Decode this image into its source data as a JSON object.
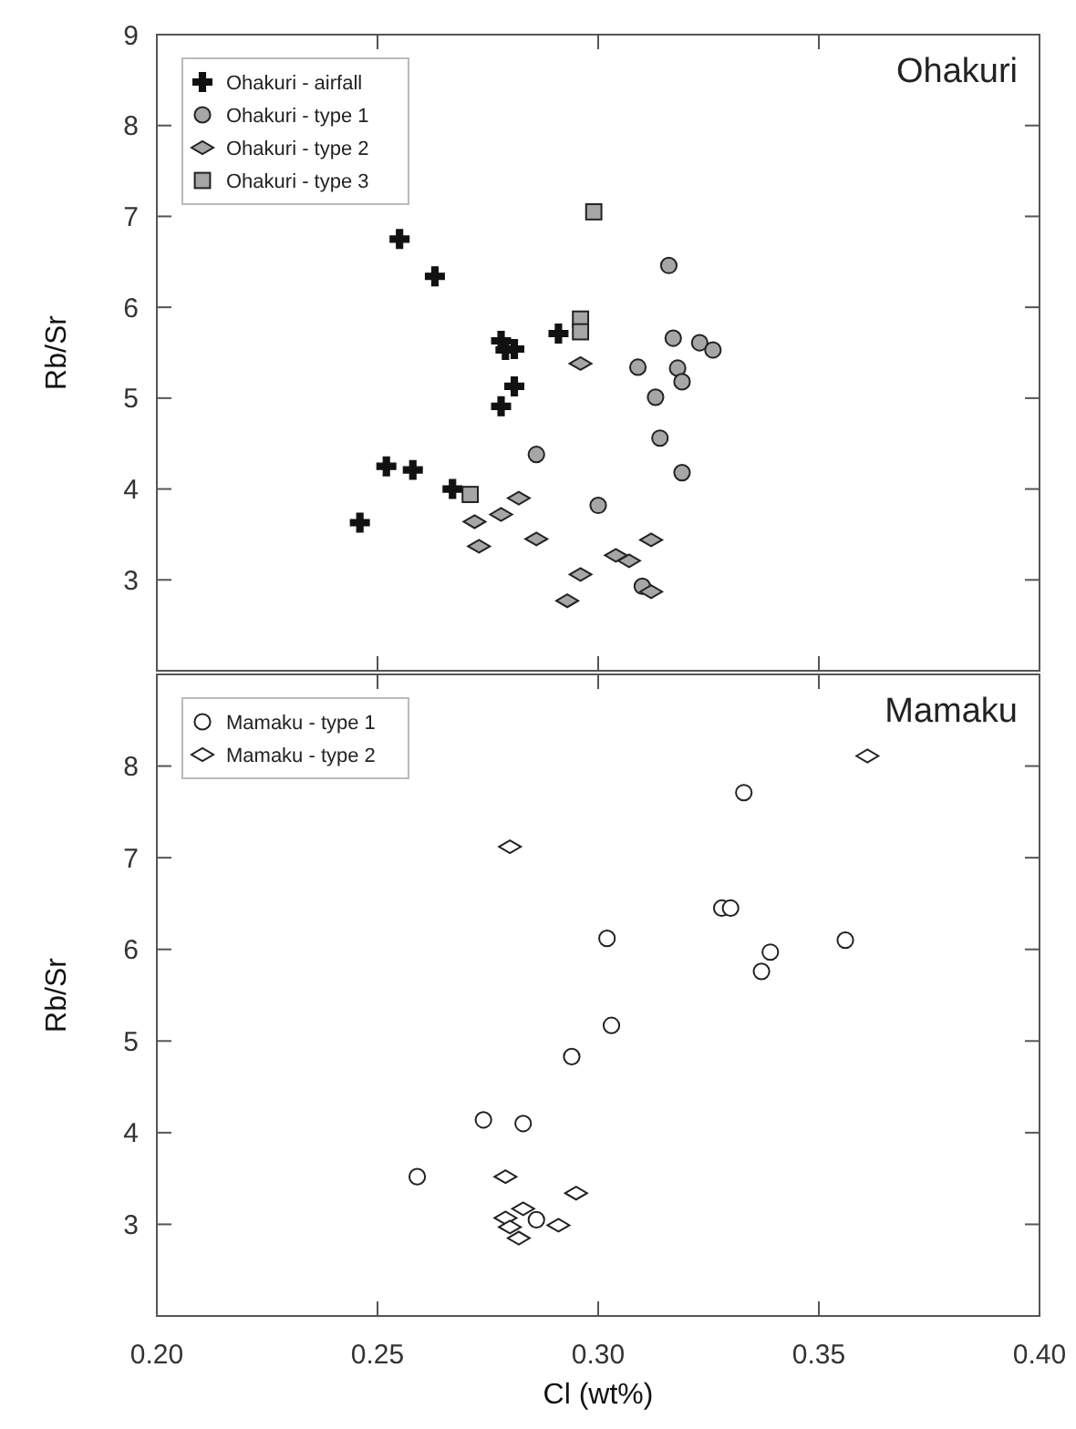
{
  "chart_data": [
    {
      "type": "scatter",
      "title": "Ohakuri",
      "ylabel": "Rb/Sr",
      "xlim": [
        0.2,
        0.4
      ],
      "ylim": [
        2,
        9
      ],
      "xticks": [
        {
          "value": 0.25,
          "label": null
        },
        {
          "value": 0.3,
          "label": null
        },
        {
          "value": 0.35,
          "label": null
        }
      ],
      "yticks": [
        3,
        4,
        5,
        6,
        7,
        8,
        9
      ],
      "tick_labels": "y",
      "legend": "top left",
      "grid": false,
      "series": [
        {
          "name": "Ohakuri - airfall",
          "color": "#111111",
          "marker": "cross",
          "x": [
            0.246,
            0.252,
            0.258,
            0.255,
            0.263,
            0.267,
            0.278,
            0.279,
            0.281,
            0.281,
            0.278,
            0.291
          ],
          "values": [
            3.63,
            4.25,
            4.21,
            6.75,
            6.34,
            4.0,
            5.63,
            5.53,
            5.54,
            5.13,
            4.91,
            5.71
          ]
        },
        {
          "name": "Ohakuri - type 1",
          "color": "#a6a6a6",
          "marker": "circle",
          "x": [
            0.316,
            0.317,
            0.323,
            0.326,
            0.309,
            0.318,
            0.319,
            0.313,
            0.314,
            0.319,
            0.286,
            0.3,
            0.31
          ],
          "values": [
            6.46,
            5.66,
            5.61,
            5.53,
            5.34,
            5.33,
            5.18,
            5.01,
            4.56,
            4.18,
            4.38,
            3.82,
            2.93
          ]
        },
        {
          "name": "Ohakuri - type 2",
          "color": "#a6a6a6",
          "marker": "diamond",
          "x": [
            0.296,
            0.282,
            0.278,
            0.272,
            0.273,
            0.286,
            0.312,
            0.304,
            0.307,
            0.296,
            0.293,
            0.312
          ],
          "values": [
            5.38,
            3.9,
            3.72,
            3.64,
            3.37,
            3.45,
            3.44,
            3.27,
            3.21,
            3.06,
            2.77,
            2.87
          ]
        },
        {
          "name": "Ohakuri - type 3",
          "color": "#a6a6a6",
          "marker": "square",
          "x": [
            0.299,
            0.296,
            0.296,
            0.271
          ],
          "values": [
            7.05,
            5.87,
            5.73,
            3.94
          ]
        }
      ]
    },
    {
      "type": "scatter",
      "title": "Mamaku",
      "xlabel": "Cl (wt%)",
      "ylabel": "Rb/Sr",
      "xlim": [
        0.2,
        0.4
      ],
      "ylim": [
        2,
        9
      ],
      "xticks": [
        {
          "value": 0.2,
          "label": "0.20"
        },
        0.25,
        {
          "value": 0.3,
          "label": "0.30"
        },
        0.35,
        {
          "value": 0.4,
          "label": "0.40"
        }
      ],
      "yticks": [
        3,
        4,
        5,
        6,
        7,
        8
      ],
      "legend": "top left",
      "grid": false,
      "series": [
        {
          "name": "Mamaku - type 1",
          "color": "#ffffff",
          "marker": "circle",
          "x": [
            0.333,
            0.328,
            0.33,
            0.302,
            0.356,
            0.339,
            0.337,
            0.303,
            0.294,
            0.274,
            0.283,
            0.259,
            0.286
          ],
          "values": [
            7.71,
            6.45,
            6.45,
            6.12,
            6.1,
            5.97,
            5.76,
            5.17,
            4.83,
            4.14,
            4.1,
            3.52,
            3.05
          ]
        },
        {
          "name": "Mamaku - type 2",
          "color": "#ffffff",
          "marker": "diamond",
          "x": [
            0.361,
            0.28,
            0.279,
            0.295,
            0.283,
            0.279,
            0.28,
            0.291,
            0.282
          ],
          "values": [
            8.11,
            7.12,
            3.52,
            3.34,
            3.17,
            3.07,
            2.97,
            2.99,
            2.85
          ]
        }
      ]
    }
  ]
}
